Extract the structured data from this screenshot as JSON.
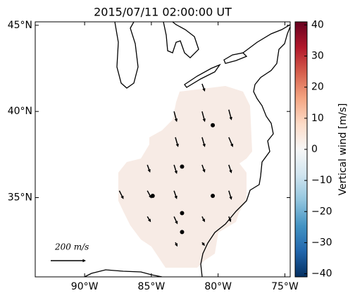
{
  "chart_data": {
    "type": "quiver-map",
    "title": "2015/07/11 02:00:00 UT",
    "xlim": [
      -93.7,
      -74.6
    ],
    "ylim": [
      30.4,
      45.2
    ],
    "xticks": [
      {
        "value": -90,
        "label": "90°W"
      },
      {
        "value": -85,
        "label": "85°W"
      },
      {
        "value": -80,
        "label": "80°W"
      },
      {
        "value": -75,
        "label": "75°W"
      }
    ],
    "yticks": [
      {
        "value": 45,
        "label": "45°N"
      },
      {
        "value": 40,
        "label": "40°N"
      },
      {
        "value": 35,
        "label": "35°N"
      }
    ],
    "arrows": [
      {
        "lon": -81.2,
        "lat": 41.6,
        "u": 16,
        "v": -44
      },
      {
        "lon": -83.3,
        "lat": 40.0,
        "u": 16,
        "v": -60
      },
      {
        "lon": -81.2,
        "lat": 40.0,
        "u": 16,
        "v": -60
      },
      {
        "lon": -79.2,
        "lat": 40.1,
        "u": 16,
        "v": -60
      },
      {
        "lon": -83.2,
        "lat": 38.5,
        "u": 16,
        "v": -56
      },
      {
        "lon": -81.2,
        "lat": 38.5,
        "u": 16,
        "v": -56
      },
      {
        "lon": -79.2,
        "lat": 38.5,
        "u": 24,
        "v": -56
      },
      {
        "lon": -85.3,
        "lat": 36.9,
        "u": 16,
        "v": -44
      },
      {
        "lon": -83.3,
        "lat": 36.9,
        "u": 16,
        "v": -52
      },
      {
        "lon": -81.2,
        "lat": 36.9,
        "u": 16,
        "v": -44
      },
      {
        "lon": -79.2,
        "lat": 36.9,
        "u": 16,
        "v": -48
      },
      {
        "lon": -87.4,
        "lat": 35.4,
        "u": 24,
        "v": -48
      },
      {
        "lon": -85.3,
        "lat": 35.4,
        "u": 24,
        "v": -44
      },
      {
        "lon": -83.3,
        "lat": 35.4,
        "u": 16,
        "v": -48
      },
      {
        "lon": -79.2,
        "lat": 35.4,
        "u": 16,
        "v": -52
      },
      {
        "lon": -85.3,
        "lat": 33.9,
        "u": 20,
        "v": -32
      },
      {
        "lon": -83.3,
        "lat": 33.9,
        "u": 20,
        "v": -44
      },
      {
        "lon": -81.2,
        "lat": 33.9,
        "u": 16,
        "v": -32
      },
      {
        "lon": -79.2,
        "lat": 33.9,
        "u": 12,
        "v": -32
      },
      {
        "lon": -83.2,
        "lat": 32.4,
        "u": 12,
        "v": -24
      },
      {
        "lon": -81.2,
        "lat": 32.4,
        "u": 16,
        "v": -20
      }
    ],
    "points": [
      {
        "lon": -80.4,
        "lat": 39.2
      },
      {
        "lon": -82.7,
        "lat": 36.8
      },
      {
        "lon": -84.9,
        "lat": 35.1
      },
      {
        "lon": -80.4,
        "lat": 35.1
      },
      {
        "lon": -82.7,
        "lat": 34.1
      },
      {
        "lon": -82.7,
        "lat": 33.0
      }
    ],
    "scale_arrow": {
      "value": 200,
      "label": "200 m/s"
    },
    "colorbar": {
      "label": "Vertical wind [m/s]",
      "lim": [
        -41,
        41
      ],
      "ticks": [
        {
          "value": -40,
          "label": "−40"
        },
        {
          "value": -30,
          "label": "−30"
        },
        {
          "value": -20,
          "label": "−20"
        },
        {
          "value": -10,
          "label": "−10"
        },
        0,
        10,
        20,
        30,
        40
      ],
      "colors": [
        "#053061",
        "#2166ac",
        "#4393c3",
        "#92c5de",
        "#d1e5f0",
        "#f7f7f7",
        "#fddbc7",
        "#f4a582",
        "#d6604d",
        "#b2182b",
        "#67001f"
      ]
    },
    "color": "#000000"
  }
}
